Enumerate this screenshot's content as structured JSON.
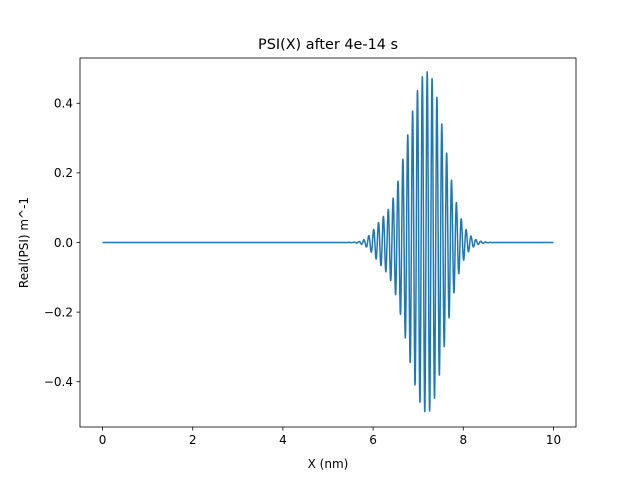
{
  "chart_data": {
    "type": "line",
    "title": "PSI(X) after 4e-14 s",
    "xlabel": "X (nm)",
    "ylabel": "Real(PSI) m^-1",
    "xlim": [
      -0.5,
      10.5
    ],
    "ylim": [
      -0.53,
      0.53
    ],
    "xticks": [
      0,
      2,
      4,
      6,
      8,
      10
    ],
    "xtick_labels": [
      "0",
      "2",
      "4",
      "6",
      "8",
      "10"
    ],
    "yticks": [
      -0.4,
      -0.2,
      0.0,
      0.2,
      0.4
    ],
    "ytick_labels": [
      "−0.4",
      "−0.2",
      "0.0",
      "0.2",
      "0.4"
    ],
    "grid": false,
    "series": [
      {
        "color": "#1f77b4",
        "x_range": [
          0,
          10
        ],
        "wave_packet": {
          "center_nm": 7.2,
          "peak_amplitude": 0.49,
          "wavelength_nm": 0.108,
          "sigma_left_nm": 0.45,
          "sigma_right_nm": 0.38,
          "left_tail_center_nm": 6.15,
          "left_tail_amplitude": 0.03,
          "left_tail_sigma_nm": 0.18
        }
      }
    ]
  }
}
